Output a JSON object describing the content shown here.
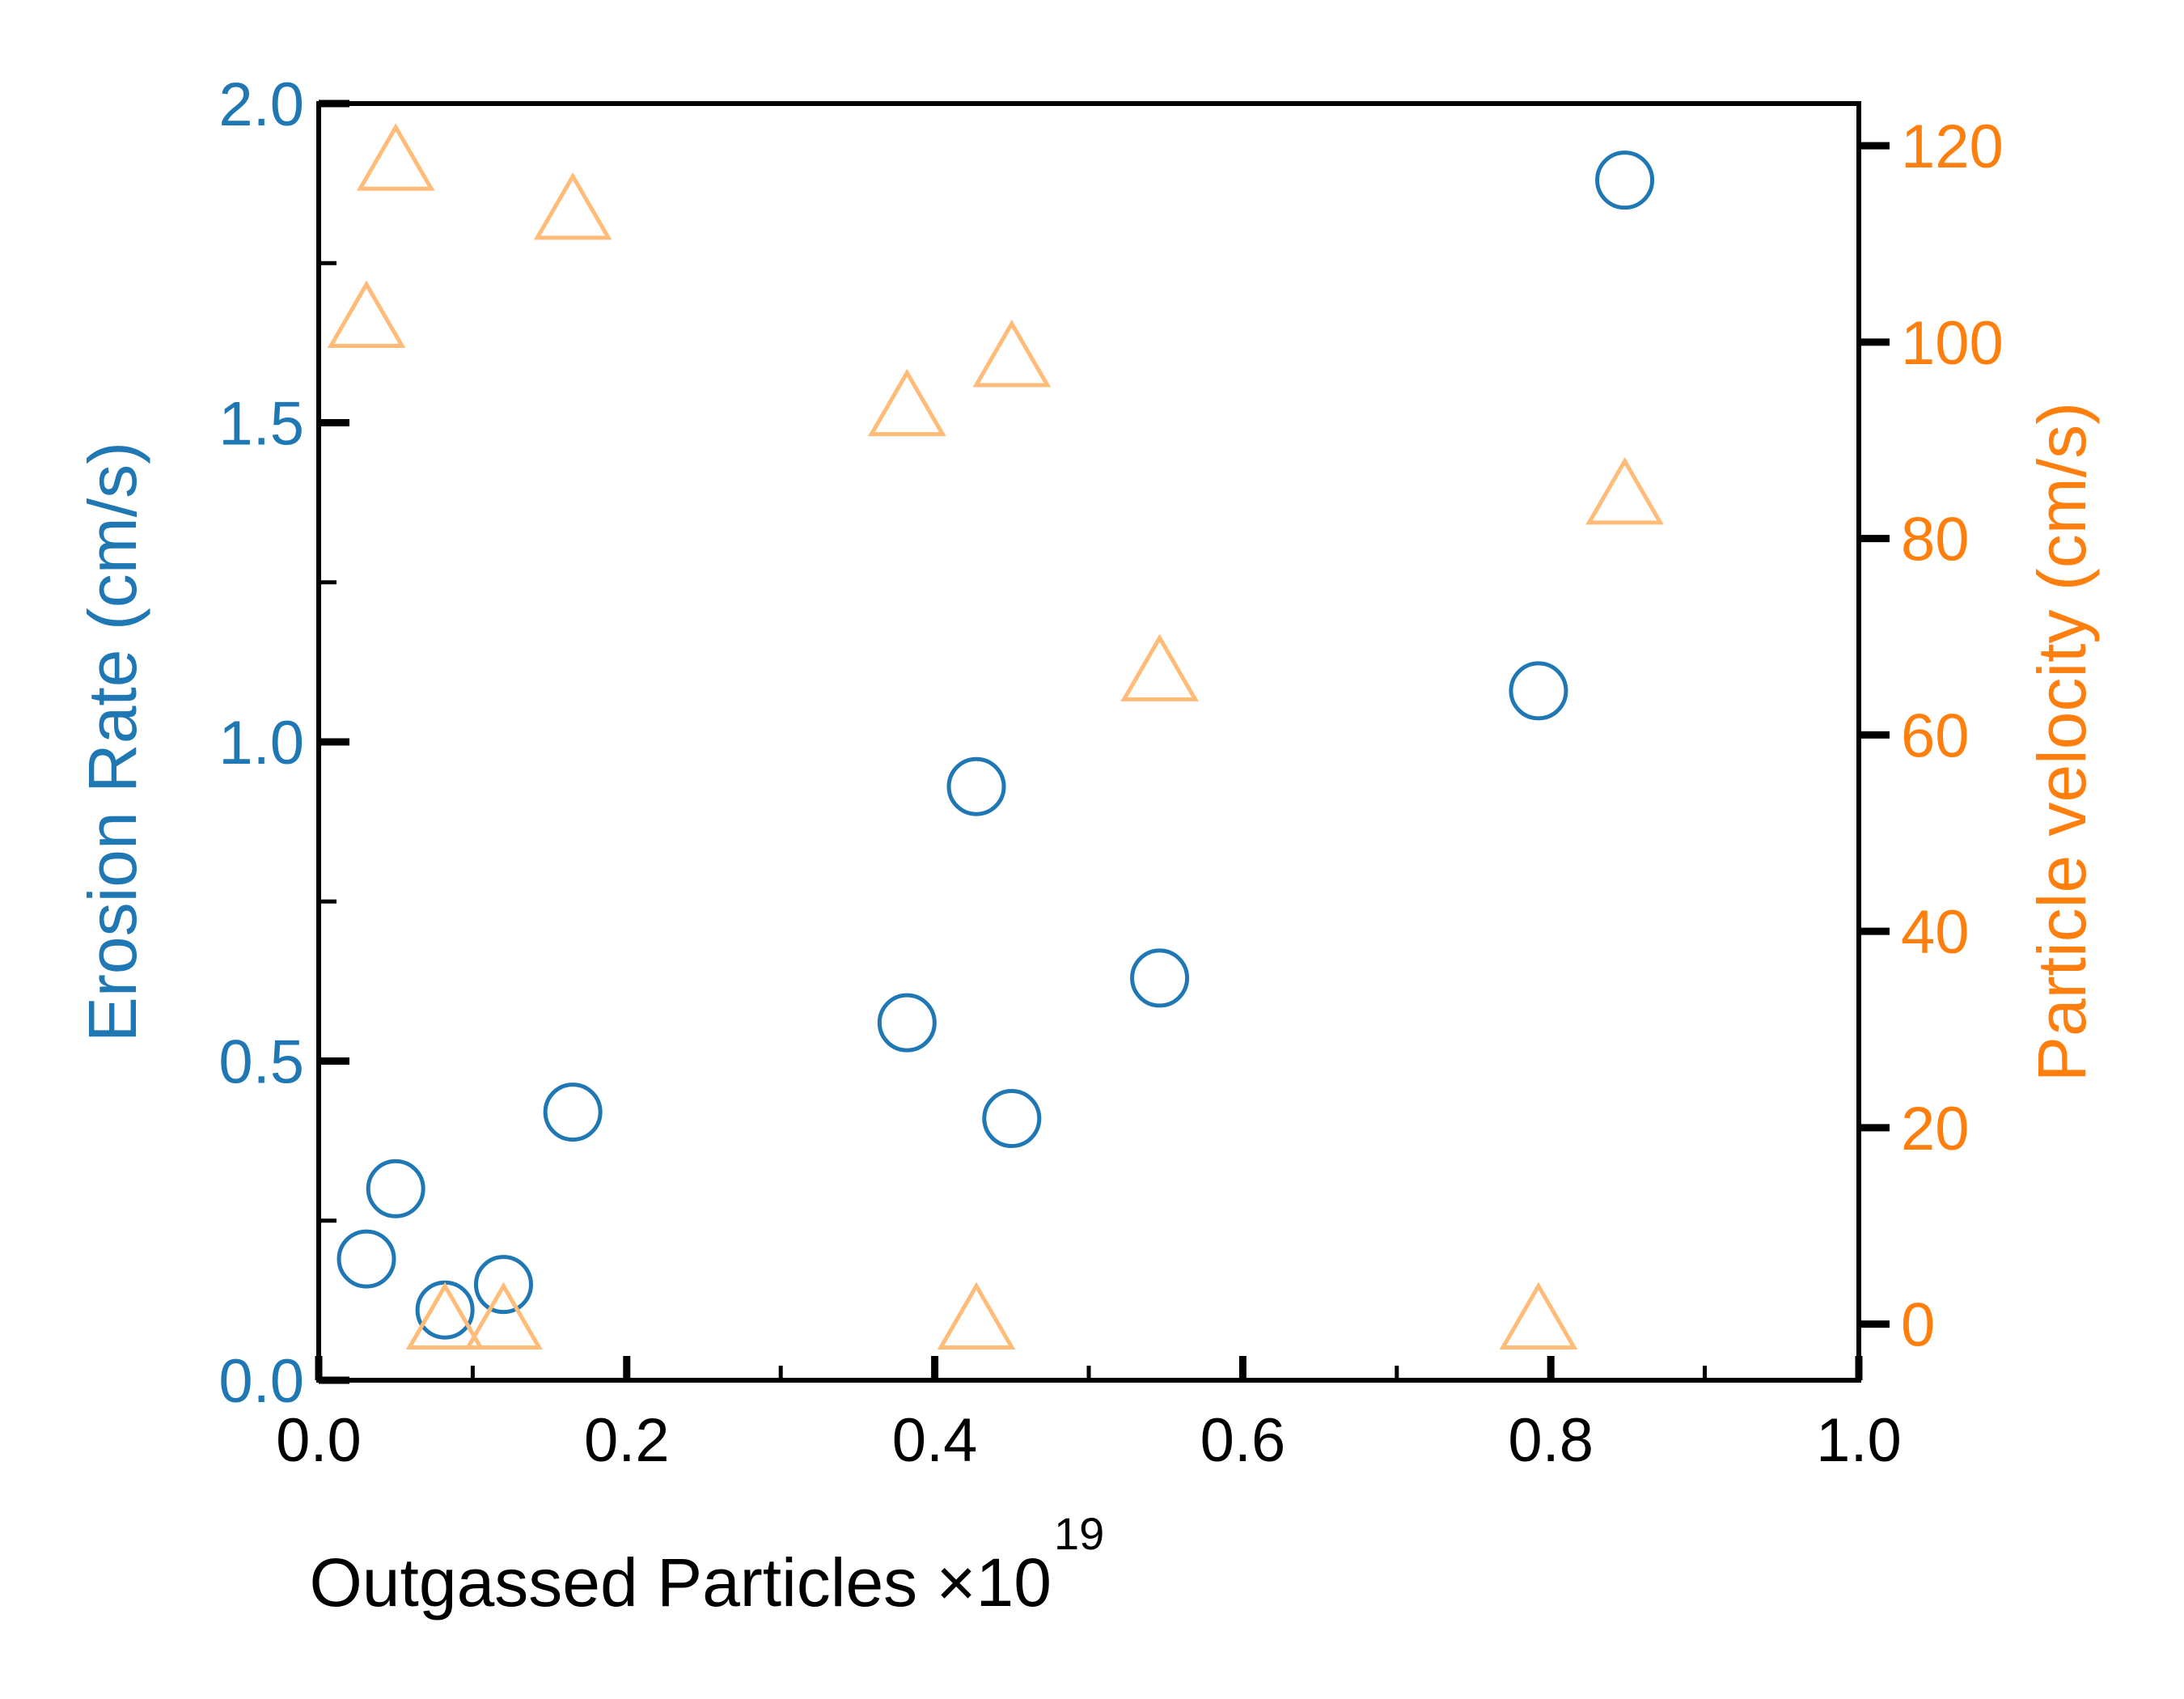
{
  "chart_data": {
    "type": "scatter",
    "title": "",
    "xlabel": "Outgassed Particles ×10",
    "xlabel_exponent": "19",
    "ylabel_left": "Erosion Rate (cm/s)",
    "ylabel_right": "Particle velocity (cm/s)",
    "xlim": [
      0.0,
      1.0
    ],
    "ylim_left": [
      0.0,
      2.0
    ],
    "ylim_right": [
      -5.714,
      124.29
    ],
    "x_ticks": [
      "0.0",
      "0.2",
      "0.4",
      "0.6",
      "0.8",
      "1.0"
    ],
    "y_left_ticks": [
      "0.0",
      "0.5",
      "1.0",
      "1.5",
      "2.0"
    ],
    "y_right_ticks": [
      "0",
      "20",
      "40",
      "60",
      "80",
      "100",
      "120"
    ],
    "grid": false,
    "colors": {
      "left_axis": "#1f77b4",
      "right_axis": "#ff7f0e",
      "triangles": "#ffbb78"
    },
    "series": [
      {
        "axis": "left",
        "marker": "circle",
        "color": "#1f77b4",
        "points": [
          {
            "x": 0.031,
            "y": 0.19
          },
          {
            "x": 0.05,
            "y": 0.3
          },
          {
            "x": 0.082,
            "y": 0.11
          },
          {
            "x": 0.12,
            "y": 0.15
          },
          {
            "x": 0.165,
            "y": 0.42
          },
          {
            "x": 0.382,
            "y": 0.56
          },
          {
            "x": 0.427,
            "y": 0.93
          },
          {
            "x": 0.45,
            "y": 0.41
          },
          {
            "x": 0.546,
            "y": 0.63
          },
          {
            "x": 0.792,
            "y": 1.08
          },
          {
            "x": 0.848,
            "y": 1.88
          }
        ]
      },
      {
        "axis": "right",
        "marker": "triangle",
        "color": "#ffbb78",
        "points": [
          {
            "x": 0.031,
            "y": 102
          },
          {
            "x": 0.05,
            "y": 118
          },
          {
            "x": 0.082,
            "y": 0
          },
          {
            "x": 0.12,
            "y": 0
          },
          {
            "x": 0.165,
            "y": 113
          },
          {
            "x": 0.382,
            "y": 93
          },
          {
            "x": 0.427,
            "y": 0
          },
          {
            "x": 0.45,
            "y": 98
          },
          {
            "x": 0.546,
            "y": 66
          },
          {
            "x": 0.792,
            "y": 0
          },
          {
            "x": 0.848,
            "y": 84
          }
        ]
      }
    ]
  }
}
